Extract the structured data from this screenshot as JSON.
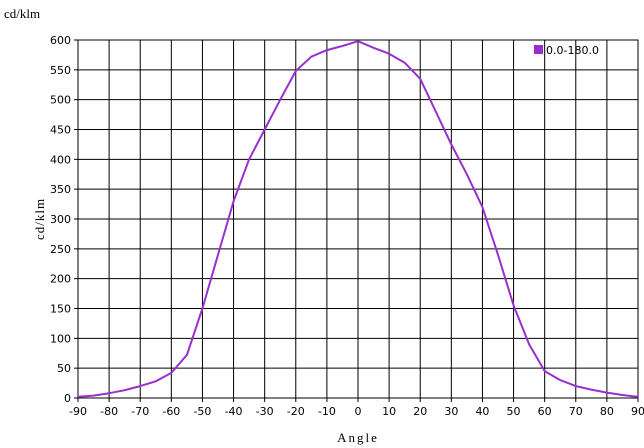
{
  "chart_data": {
    "type": "line",
    "title": "cd/klm",
    "xlabel": "Angle",
    "ylabel": "cd/klm",
    "xlim": [
      -90,
      90
    ],
    "ylim": [
      0,
      600
    ],
    "x_ticks": [
      "-90",
      "-80",
      "-70",
      "-60",
      "-50",
      "-40",
      "-30",
      "-20",
      "-10",
      "0",
      "10",
      "20",
      "30",
      "40",
      "50",
      "60",
      "70",
      "80",
      "90"
    ],
    "y_ticks": [
      "0",
      "50",
      "100",
      "150",
      "200",
      "250",
      "300",
      "350",
      "400",
      "450",
      "500",
      "550",
      "600"
    ],
    "grid": true,
    "legend_position": "top-right",
    "series": [
      {
        "name": "0.0-180.0",
        "color": "#9a2fd0",
        "x": [
          -90,
          -85,
          -80,
          -75,
          -70,
          -65,
          -60,
          -55,
          -50,
          -45,
          -40,
          -35,
          -30,
          -25,
          -20,
          -15,
          -10,
          -5,
          0,
          5,
          10,
          15,
          20,
          25,
          30,
          35,
          40,
          45,
          50,
          55,
          60,
          65,
          70,
          75,
          80,
          85,
          90
        ],
        "y": [
          2,
          4,
          8,
          13,
          20,
          28,
          42,
          72,
          150,
          240,
          330,
          400,
          450,
          500,
          548,
          572,
          583,
          590,
          598,
          587,
          577,
          562,
          535,
          480,
          425,
          375,
          320,
          240,
          155,
          90,
          45,
          30,
          20,
          14,
          9,
          5,
          2
        ]
      }
    ]
  }
}
